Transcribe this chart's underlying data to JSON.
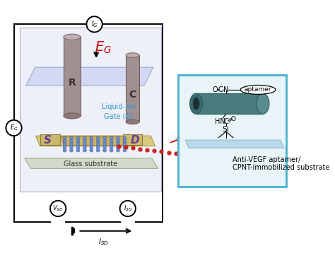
{
  "fig_width": 4.74,
  "fig_height": 3.72,
  "bg_color": "#ffffff",
  "IG_label": "$I_G$",
  "EG_label": "$E_G$",
  "EG_circuit_label": "$E_G$",
  "VSD_label": "$V_{SD}$",
  "ISD_label": "$I_{SD}$",
  "ISD_arrow_label": "$I_{SD}$",
  "liquid_ion_label": "Liquid-Ion\nGate (G)",
  "glass_label": "Glass substrate",
  "anti_vegf_line1": "Anti-VEGF aptamer/",
  "anti_vegf_line2": "CPNT-immobilized substrate",
  "aptamer_label": "aptamer",
  "S_label": "S",
  "D_label": "D",
  "R_label": "R",
  "C_label": "C",
  "EG_red": "#cc0000",
  "inset_bg": "#e8f4f8",
  "inset_border": "#4ab0d0",
  "nanotube_color": "#4a7c7e",
  "nanotube_dark": "#2a5c5e",
  "substrate_color": "#b8d8e8",
  "substrate_dark": "#90b8d0",
  "electrode_body": "#a09090",
  "electrode_top": "#c0b0b0",
  "electrode_dark": "#706060",
  "gate_platform": "#c8d0f0",
  "gate_alpha": 0.7,
  "chip_color": "#d4c87a",
  "chip_edge": "#aa9940",
  "glass_color": "#d0d8c8",
  "glass_edge": "#90a880",
  "cnt_fill": "#7090cc",
  "cnt_edge": "#4060aa",
  "sd_color": "#6a3d8a",
  "dot_color": "#cc2222",
  "device_bg": "#eef0f8",
  "device_edge": "#aaaacc"
}
